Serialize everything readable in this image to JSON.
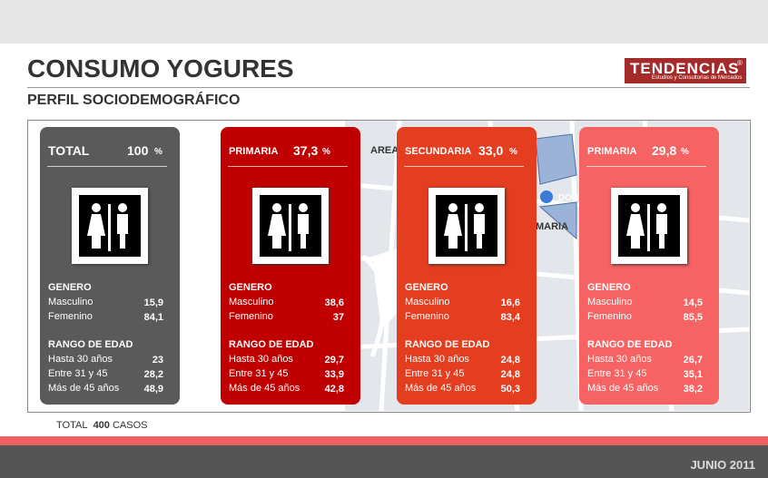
{
  "header": {
    "title": "CONSUMO YOGURES",
    "subtitle": "PERFIL SOCIODEMOGRÁFICO",
    "logo": {
      "name": "TENDENCIAS",
      "mark": "®",
      "tagline": "Estudios y Consultorías de Mercados"
    }
  },
  "map_labels": [
    "AREA",
    "DOÑ",
    "MARIA"
  ],
  "cards": [
    {
      "label": "TOTAL",
      "value": "100",
      "unit": "%",
      "color": "#5a5a5a",
      "gender_title": "GENERO",
      "gender": [
        [
          "Masculino",
          "15,9"
        ],
        [
          "Femenino",
          "84,1"
        ]
      ],
      "age_title": "RANGO DE EDAD",
      "age": [
        [
          "Hasta 30 años",
          "23"
        ],
        [
          "Entre 31 y 45",
          "28,2"
        ],
        [
          "Más de 45 años",
          "48,9"
        ]
      ]
    },
    {
      "label": "PRIMARIA",
      "value": "37,3",
      "unit": "%",
      "color": "#c00000",
      "gender_title": "GENERO",
      "gender": [
        [
          "Masculino",
          "38,6"
        ],
        [
          "Femenino",
          "37"
        ]
      ],
      "age_title": "RANGO DE EDAD",
      "age": [
        [
          "Hasta 30 años",
          "29,7"
        ],
        [
          "Entre 31 y 45",
          "33,9"
        ],
        [
          "Más de 45 años",
          "42,8"
        ]
      ]
    },
    {
      "label": "SECUNDARIA",
      "value": "33,0",
      "unit": "%",
      "color": "#e53d1f",
      "gender_title": "GENERO",
      "gender": [
        [
          "Masculino",
          "16,6"
        ],
        [
          "Femenino",
          "83,4"
        ]
      ],
      "age_title": "RANGO DE EDAD",
      "age": [
        [
          "Hasta 30 años",
          "24,8"
        ],
        [
          "Entre 31 y 45",
          "24,8"
        ],
        [
          "Más de 45 años",
          "50,3"
        ]
      ]
    },
    {
      "label": "PRIMARIA",
      "value": "29,8",
      "unit": "%",
      "color": "#f76262",
      "gender_title": "GENERO",
      "gender": [
        [
          "Masculino",
          "14,5"
        ],
        [
          "Femenino",
          "85,5"
        ]
      ],
      "age_title": "RANGO DE EDAD",
      "age": [
        [
          "Hasta 30 años",
          "26,7"
        ],
        [
          "Entre 31 y 45",
          "35,1"
        ],
        [
          "Más de 45 años",
          "38,2"
        ]
      ]
    }
  ],
  "footer": {
    "total_label": "TOTAL",
    "total_value": "400",
    "total_unit": "CASOS",
    "date": "JUNIO 2011"
  }
}
